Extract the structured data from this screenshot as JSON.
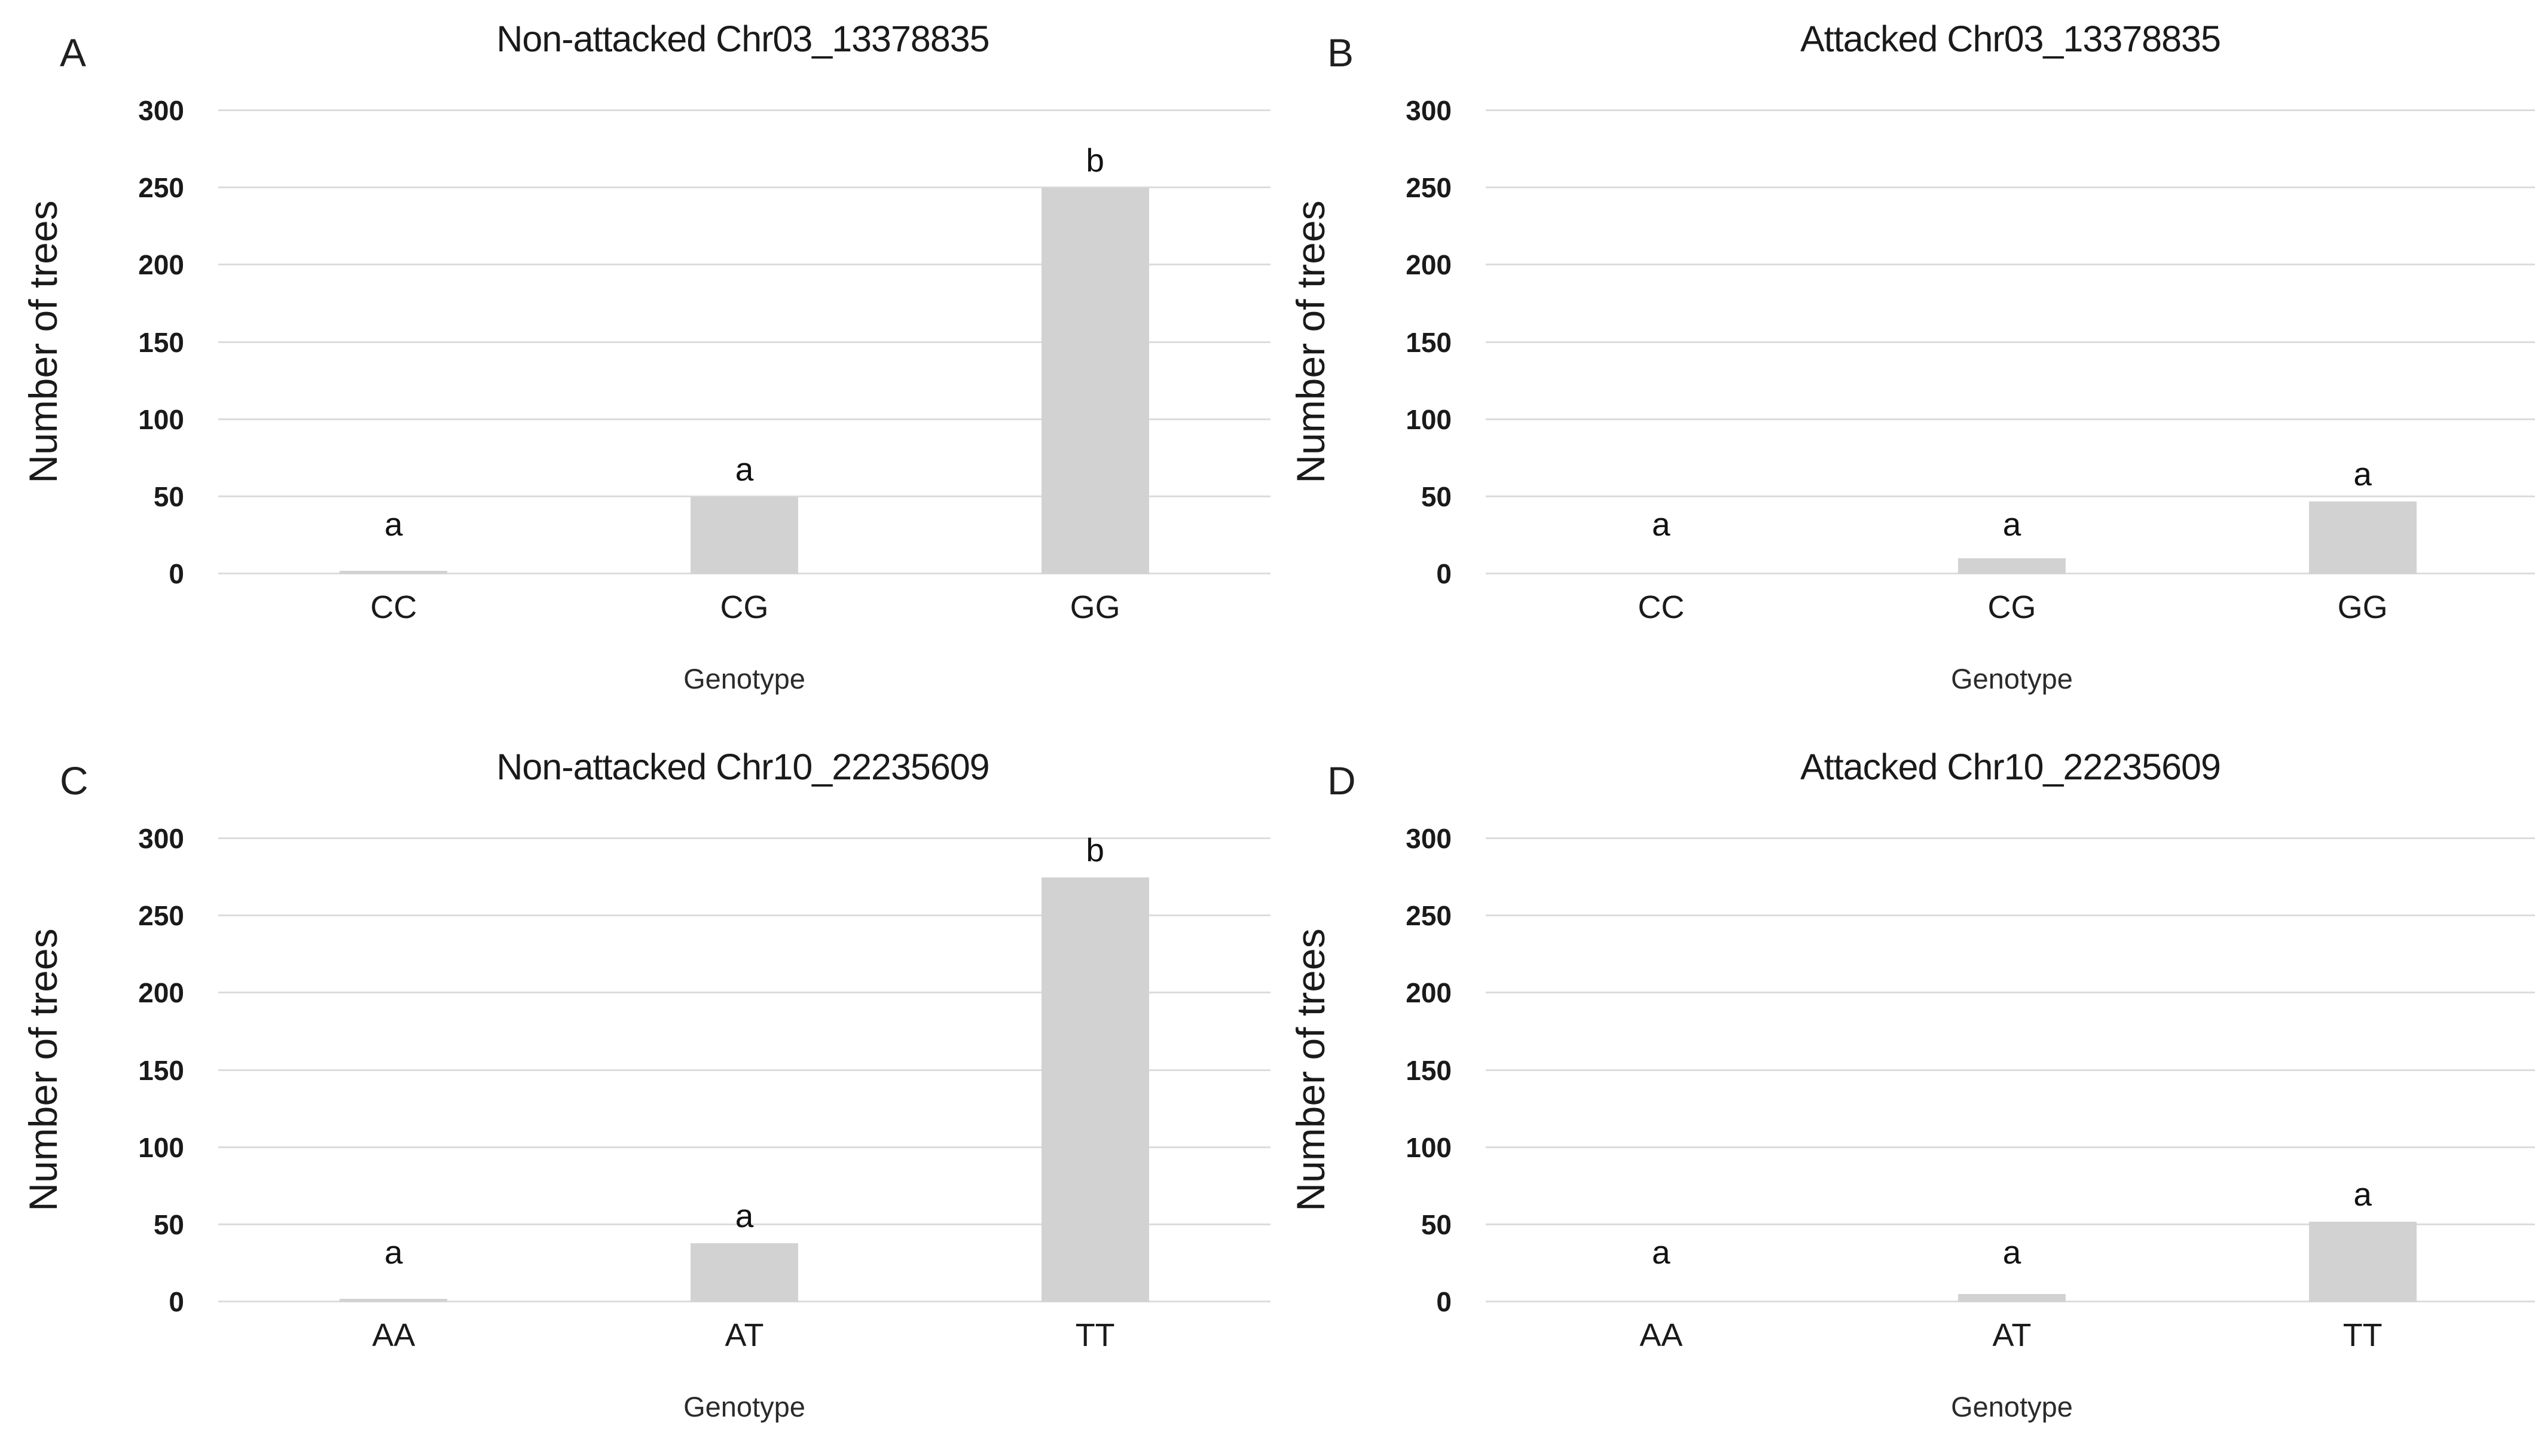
{
  "style": {
    "bar_color": "#d2d2d2",
    "gridline_color": "#dcdcdc",
    "text_color": "#1f1f1f",
    "background": "#ffffff"
  },
  "chart_data": [
    {
      "panel": "A",
      "type": "bar",
      "title": "Non-attacked Chr03_13378835",
      "xlabel": "Genotype",
      "ylabel": "Number of trees",
      "ylim": [
        0,
        300
      ],
      "yticks": [
        0,
        50,
        100,
        150,
        200,
        250,
        300
      ],
      "grid": true,
      "legend": "none",
      "categories": [
        "CC",
        "CG",
        "GG"
      ],
      "values": [
        2,
        50,
        250
      ],
      "sig_letters": [
        "a",
        "a",
        "b"
      ]
    },
    {
      "panel": "B",
      "type": "bar",
      "title": "Attacked Chr03_13378835",
      "xlabel": "Genotype",
      "ylabel": "Number of trees",
      "ylim": [
        0,
        300
      ],
      "yticks": [
        0,
        50,
        100,
        150,
        200,
        250,
        300
      ],
      "grid": true,
      "legend": "none",
      "categories": [
        "CC",
        "CG",
        "GG"
      ],
      "values": [
        0,
        10,
        47
      ],
      "sig_letters": [
        "a",
        "a",
        "a"
      ]
    },
    {
      "panel": "C",
      "type": "bar",
      "title": "Non-attacked Chr10_22235609",
      "xlabel": "Genotype",
      "ylabel": "Number of trees",
      "ylim": [
        0,
        300
      ],
      "yticks": [
        0,
        50,
        100,
        150,
        200,
        250,
        300
      ],
      "grid": true,
      "legend": "none",
      "categories": [
        "AA",
        "AT",
        "TT"
      ],
      "values": [
        2,
        38,
        275
      ],
      "sig_letters": [
        "a",
        "a",
        "b"
      ]
    },
    {
      "panel": "D",
      "type": "bar",
      "title": "Attacked Chr10_22235609",
      "xlabel": "Genotype",
      "ylabel": "Number of trees",
      "ylim": [
        0,
        300
      ],
      "yticks": [
        0,
        50,
        100,
        150,
        200,
        250,
        300
      ],
      "grid": true,
      "legend": "none",
      "categories": [
        "AA",
        "AT",
        "TT"
      ],
      "values": [
        0,
        5,
        52
      ],
      "sig_letters": [
        "a",
        "a",
        "a"
      ]
    }
  ]
}
